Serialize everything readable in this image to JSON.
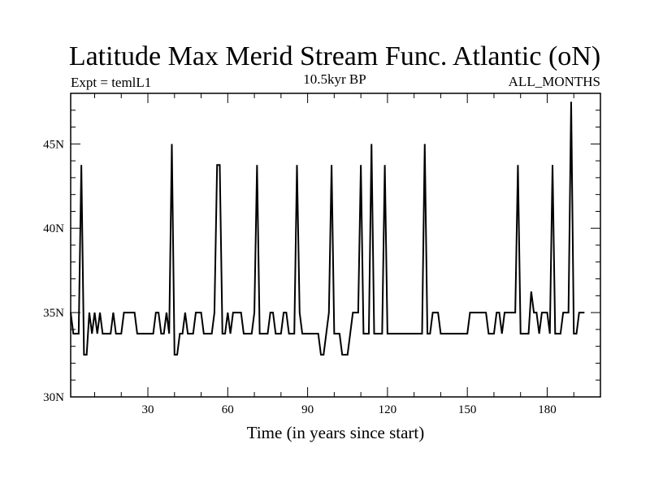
{
  "chart_data": {
    "type": "line",
    "title": "Latitude Max Merid Stream Func. Atlantic (oN)",
    "subtitle_left": "Expt = temlL1",
    "subtitle_center": "10.5kyr BP",
    "subtitle_right": "ALL_MONTHS",
    "xlabel": "Time (in years since start)",
    "ylabel": "",
    "xlim": [
      1,
      200
    ],
    "ylim": [
      30,
      48
    ],
    "x_ticks": [
      30,
      60,
      90,
      120,
      150,
      180
    ],
    "y_ticks": [
      30,
      35,
      40,
      45
    ],
    "y_tick_labels": [
      "30N",
      "35N",
      "40N",
      "45N"
    ],
    "grid": false,
    "series": [
      {
        "values": [
          35,
          33.75,
          33.75,
          33.75,
          43.75,
          32.5,
          32.5,
          35,
          33.75,
          35,
          33.75,
          35,
          33.75,
          33.75,
          33.75,
          33.75,
          35,
          33.75,
          33.75,
          33.75,
          35,
          35,
          35,
          35,
          35,
          33.75,
          33.75,
          33.75,
          33.75,
          33.75,
          33.75,
          33.75,
          35,
          35,
          33.75,
          33.75,
          35,
          33.75,
          45,
          32.5,
          32.5,
          33.75,
          33.75,
          35,
          33.75,
          33.75,
          33.75,
          35,
          35,
          35,
          33.75,
          33.75,
          33.75,
          33.75,
          35,
          43.75,
          43.75,
          33.75,
          33.75,
          35,
          33.75,
          35,
          35,
          35,
          35,
          33.75,
          33.75,
          33.75,
          33.75,
          35,
          43.75,
          33.75,
          33.75,
          33.75,
          33.75,
          35,
          35,
          33.75,
          33.75,
          33.75,
          35,
          35,
          33.75,
          33.75,
          33.75,
          43.75,
          35,
          33.75,
          33.75,
          33.75,
          33.75,
          33.75,
          33.75,
          33.75,
          32.5,
          32.5,
          33.75,
          35,
          43.75,
          33.75,
          33.75,
          33.75,
          32.5,
          32.5,
          32.5,
          33.75,
          35,
          35,
          35,
          43.75,
          33.75,
          33.75,
          33.75,
          45,
          33.75,
          33.75,
          33.75,
          33.75,
          43.75,
          33.75,
          33.75,
          33.75,
          33.75,
          33.75,
          33.75,
          33.75,
          33.75,
          33.75,
          33.75,
          33.75,
          33.75,
          33.75,
          33.75,
          45,
          33.75,
          33.75,
          35,
          35,
          35,
          33.75,
          33.75,
          33.75,
          33.75,
          33.75,
          33.75,
          33.75,
          33.75,
          33.75,
          33.75,
          33.75,
          35,
          35,
          35,
          35,
          35,
          35,
          35,
          33.75,
          33.75,
          33.75,
          35,
          35,
          33.75,
          35,
          35,
          35,
          35,
          35,
          43.75,
          33.75,
          33.75,
          33.75,
          33.75,
          36.25,
          35,
          35,
          33.75,
          35,
          35,
          35,
          33.75,
          43.75,
          33.75,
          33.75,
          33.75,
          35,
          35,
          35,
          47.5,
          33.75,
          33.75,
          35,
          35,
          35
        ]
      }
    ]
  }
}
